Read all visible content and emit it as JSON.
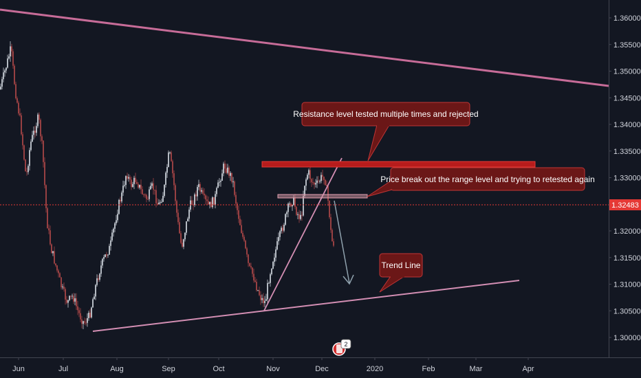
{
  "chart_data": {
    "type": "candlestick",
    "title": "",
    "xlabel": "",
    "ylabel": "",
    "y_ticks": [
      "1.36000",
      "1.35500",
      "1.35000",
      "1.34500",
      "1.34000",
      "1.33500",
      "1.33000",
      "1.32500",
      "1.32000",
      "1.31500",
      "1.31000",
      "1.30500",
      "1.30000"
    ],
    "y_tick_values": [
      1.36,
      1.355,
      1.35,
      1.345,
      1.34,
      1.335,
      1.33,
      1.325,
      1.32,
      1.315,
      1.31,
      1.305,
      1.3
    ],
    "x_ticks": [
      "Jun",
      "Jul",
      "Aug",
      "Sep",
      "Oct",
      "Nov",
      "Dec",
      "2020",
      "Feb",
      "Mar",
      "Apr"
    ],
    "ylim": [
      1.2965,
      1.3645
    ],
    "current_price": "1.32483",
    "current_price_value": 1.32483,
    "grid": false,
    "annotations": [
      {
        "id": "resistance",
        "text": "Resistance level tested multiple times and rejected"
      },
      {
        "id": "breakout",
        "text": "Price break out the range level and trying to retested again"
      },
      {
        "id": "trendline",
        "text": "Trend Line"
      }
    ],
    "badge_text": "2",
    "colors": {
      "background": "#131722",
      "up": "#dde3ea",
      "down": "#b84a4a",
      "trendline": "#c76c98",
      "zone": "#b71c1c",
      "callout_bg": "#6b1717",
      "callout_border": "#c03535",
      "price_label": "#e53935",
      "arrow": "#8fa1ad",
      "axis_text": "#d1d4dc"
    }
  }
}
